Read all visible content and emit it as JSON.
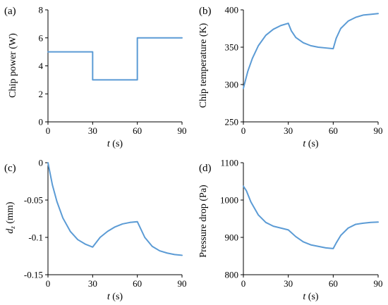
{
  "colors": {
    "series": "#5b9bd5",
    "axis": "#000000"
  },
  "chart_data": [
    {
      "type": "line",
      "panel_label": "(a)",
      "xlabel": "t (s)",
      "ylabel": "Chip power (W)",
      "xlim": [
        0,
        90
      ],
      "ylim": [
        0,
        8
      ],
      "x_ticks": [
        0,
        30,
        60,
        90
      ],
      "x_tick_labels": [
        "0",
        "30",
        "60",
        "90"
      ],
      "y_ticks": [
        0,
        2,
        4,
        6,
        8
      ],
      "y_tick_labels": [
        "0",
        "2",
        "4",
        "6",
        "8"
      ],
      "series": [
        {
          "x": [
            0,
            30,
            30,
            60,
            60,
            90
          ],
          "y": [
            5,
            5,
            3,
            3,
            6,
            6
          ]
        }
      ]
    },
    {
      "type": "line",
      "panel_label": "(b)",
      "xlabel": "t (s)",
      "ylabel": "Chip temperature (K)",
      "xlim": [
        0,
        90
      ],
      "ylim": [
        250,
        400
      ],
      "x_ticks": [
        0,
        30,
        60,
        90
      ],
      "x_tick_labels": [
        "0",
        "30",
        "60",
        "90"
      ],
      "y_ticks": [
        250,
        300,
        350,
        400
      ],
      "y_tick_labels": [
        "250",
        "300",
        "350",
        "400"
      ],
      "series": [
        {
          "x": [
            0,
            3,
            6,
            10,
            15,
            20,
            25,
            30,
            32,
            35,
            40,
            45,
            50,
            55,
            60,
            62,
            65,
            70,
            75,
            80,
            85,
            90
          ],
          "y": [
            295,
            318,
            335,
            352,
            366,
            374,
            379,
            382,
            372,
            363,
            356,
            352,
            350,
            349,
            348,
            362,
            375,
            385,
            390,
            393,
            394,
            395
          ]
        }
      ]
    },
    {
      "type": "line",
      "panel_label": "(c)",
      "xlabel": "t (s)",
      "ylabel": "d_z (mm)",
      "xlim": [
        0,
        90
      ],
      "ylim": [
        -0.15,
        0
      ],
      "x_ticks": [
        0,
        30,
        60,
        90
      ],
      "x_tick_labels": [
        "0",
        "30",
        "60",
        "90"
      ],
      "y_ticks": [
        0,
        -0.05,
        -0.1,
        -0.15
      ],
      "y_tick_labels": [
        "0",
        "-0.05",
        "-0.1",
        "-0.15"
      ],
      "series": [
        {
          "x": [
            0,
            3,
            6,
            10,
            15,
            20,
            25,
            30,
            35,
            40,
            45,
            50,
            55,
            60,
            65,
            70,
            75,
            80,
            85,
            90
          ],
          "y": [
            0,
            -0.03,
            -0.052,
            -0.074,
            -0.092,
            -0.103,
            -0.109,
            -0.113,
            -0.1,
            -0.092,
            -0.086,
            -0.082,
            -0.08,
            -0.079,
            -0.1,
            -0.112,
            -0.118,
            -0.121,
            -0.123,
            -0.124
          ]
        }
      ]
    },
    {
      "type": "line",
      "panel_label": "(d)",
      "xlabel": "t (s)",
      "ylabel": "Pressure drop (Pa)",
      "xlim": [
        0,
        90
      ],
      "ylim": [
        800,
        1100
      ],
      "x_ticks": [
        0,
        30,
        60,
        90
      ],
      "x_tick_labels": [
        "0",
        "30",
        "60",
        "90"
      ],
      "y_ticks": [
        800,
        900,
        1000,
        1100
      ],
      "y_tick_labels": [
        "800",
        "900",
        "1000",
        "1100"
      ],
      "series": [
        {
          "x": [
            0,
            2,
            5,
            10,
            15,
            20,
            25,
            30,
            35,
            40,
            45,
            50,
            55,
            60,
            62,
            65,
            70,
            75,
            80,
            85,
            90
          ],
          "y": [
            1037,
            1025,
            995,
            960,
            940,
            930,
            925,
            920,
            902,
            888,
            880,
            876,
            872,
            870,
            885,
            905,
            925,
            935,
            938,
            940,
            941
          ]
        }
      ]
    }
  ]
}
